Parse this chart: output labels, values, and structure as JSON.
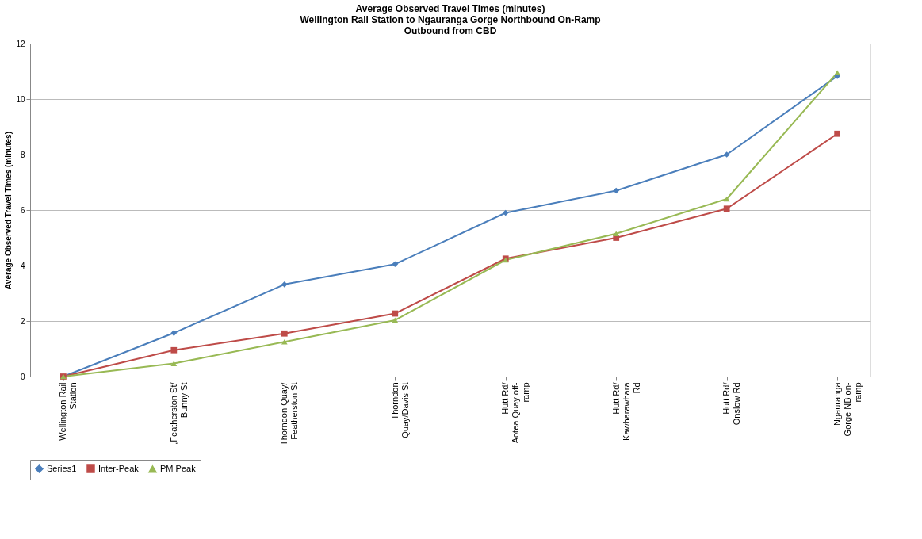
{
  "chart_data": {
    "type": "line",
    "title": [
      "Average Observed Travel Times (minutes)",
      "Wellington Rail Station to Ngauranga Gorge Northbound On-Ramp",
      "Outbound from CBD"
    ],
    "ylabel": "Average Observed Travel Times (minutes)",
    "categories": [
      "Wellington Rail\nStation",
      ",Featherston St/\nBunny St",
      "Thorndon Quay/\nFeatherston St",
      "Thorndon\nQuay/Davis St",
      "Hutt Rd/\nAotea Quay off-\nramp",
      "Hutt Rd/\nKawharawhara\nRd",
      "Hutt Rd/\nOnslow Rd",
      "Ngauranga\nGorge NB on-\nramp"
    ],
    "ylim": [
      0,
      12
    ],
    "yticks": [
      0,
      2,
      4,
      6,
      8,
      10,
      12
    ],
    "grid": "y",
    "legend": "bottom",
    "line_style": "solid",
    "series": [
      {
        "name": "Series1",
        "color": "#4a7ebb",
        "marker": "diamond",
        "values": [
          0,
          1.57,
          3.32,
          4.05,
          5.9,
          6.7,
          8.0,
          10.83
        ]
      },
      {
        "name": "Inter-Peak",
        "color": "#be4b48",
        "marker": "square",
        "values": [
          0,
          0.95,
          1.55,
          2.27,
          4.25,
          5.0,
          6.05,
          8.75
        ]
      },
      {
        "name": "PM Peak",
        "color": "#98b954",
        "marker": "triangle",
        "values": [
          0,
          0.47,
          1.25,
          2.03,
          4.2,
          5.15,
          6.4,
          10.95
        ]
      }
    ]
  }
}
